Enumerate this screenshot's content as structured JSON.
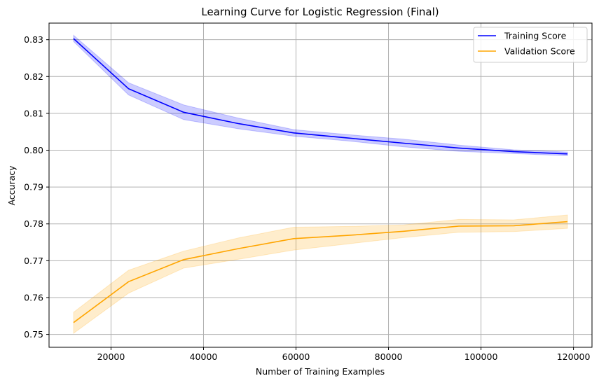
{
  "chart_data": {
    "type": "line",
    "title": "Learning Curve for Logistic Regression (Final)",
    "xlabel": "Number of Training Examples",
    "ylabel": "Accuracy",
    "xlim": [
      6600,
      124000
    ],
    "ylim": [
      0.7465,
      0.8345
    ],
    "xticks": [
      20000,
      40000,
      60000,
      80000,
      100000,
      120000
    ],
    "yticks": [
      0.75,
      0.76,
      0.77,
      0.78,
      0.79,
      0.8,
      0.81,
      0.82,
      0.83
    ],
    "xtick_labels": [
      "20000",
      "40000",
      "60000",
      "80000",
      "100000",
      "120000"
    ],
    "ytick_labels": [
      "0.75",
      "0.76",
      "0.77",
      "0.78",
      "0.79",
      "0.80",
      "0.81",
      "0.82",
      "0.83"
    ],
    "grid": true,
    "legend": "top-right",
    "x": [
      11900,
      23800,
      35700,
      47600,
      59500,
      71400,
      83300,
      95200,
      107100,
      118700
    ],
    "series": [
      {
        "name": "Training Score",
        "color": "#0000ff",
        "values": [
          0.8303,
          0.8167,
          0.8103,
          0.8072,
          0.8047,
          0.8033,
          0.8019,
          0.8006,
          0.7996,
          0.799
        ],
        "lower": [
          0.8295,
          0.815,
          0.8083,
          0.8058,
          0.8038,
          0.8025,
          0.8009,
          0.7997,
          0.7991,
          0.7985
        ],
        "upper": [
          0.8312,
          0.8183,
          0.8123,
          0.8087,
          0.8056,
          0.8042,
          0.803,
          0.8014,
          0.8001,
          0.7995
        ]
      },
      {
        "name": "Validation Score",
        "color": "#ffa500",
        "values": [
          0.7532,
          0.7643,
          0.7703,
          0.7733,
          0.776,
          0.7769,
          0.778,
          0.7794,
          0.7795,
          0.7806
        ],
        "lower": [
          0.7503,
          0.7612,
          0.768,
          0.7704,
          0.7729,
          0.7746,
          0.7763,
          0.7777,
          0.7779,
          0.7788
        ],
        "upper": [
          0.756,
          0.7674,
          0.7726,
          0.7762,
          0.7791,
          0.7793,
          0.7797,
          0.7812,
          0.7811,
          0.7824
        ]
      }
    ]
  }
}
